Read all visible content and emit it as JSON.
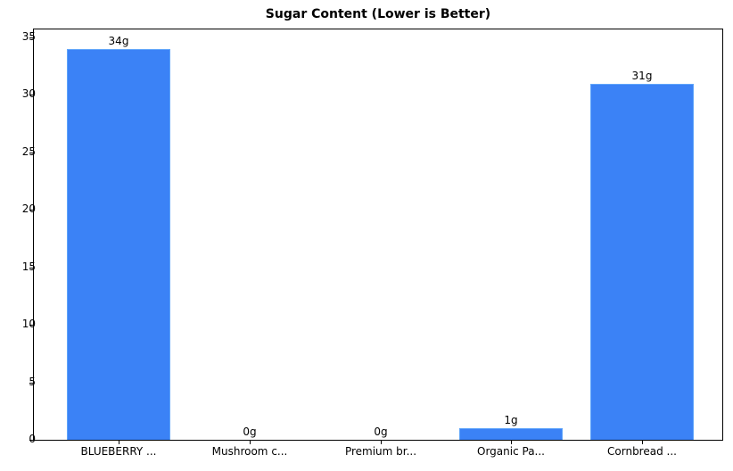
{
  "chart_data": {
    "type": "bar",
    "title": "Sugar Content (Lower is Better)",
    "xlabel": "",
    "ylabel": "",
    "categories": [
      "BLUEBERRY ...",
      "Mushroom c...",
      "Premium br...",
      "Organic Pa...",
      "Cornbread ..."
    ],
    "values": [
      34,
      0,
      0,
      1,
      31
    ],
    "value_labels": [
      "34g",
      "0g",
      "0g",
      "1g",
      "31g"
    ],
    "ylim": [
      0,
      35.7
    ],
    "yticks": [
      0,
      5,
      10,
      15,
      20,
      25,
      30,
      35
    ],
    "grid": false,
    "legend": null,
    "bar_color": "#3b82f6"
  }
}
